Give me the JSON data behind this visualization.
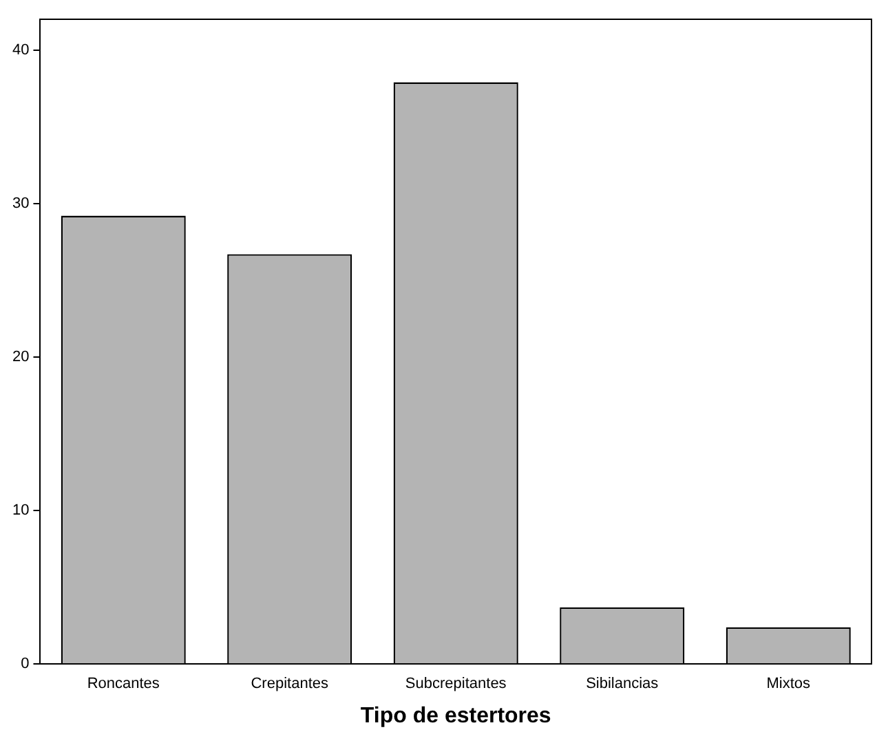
{
  "chart_data": {
    "type": "bar",
    "xlabel": "Tipo de estertores",
    "categories": [
      "Roncantes",
      "Crepitantes",
      "Subcrepitantes",
      "Sibilancias",
      "Mixtos"
    ],
    "values": [
      29.2,
      26.7,
      37.9,
      3.7,
      2.4
    ],
    "color": "#b4b4b4",
    "ylim": [
      0,
      42
    ],
    "yticks": [
      0,
      10,
      20,
      30,
      40
    ],
    "grid": false,
    "legend": false
  }
}
